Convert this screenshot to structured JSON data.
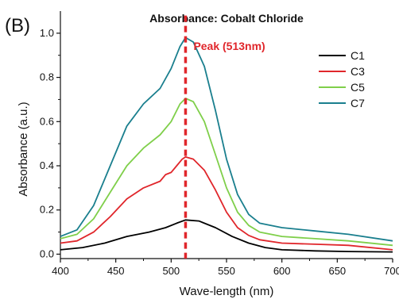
{
  "panel_label": "(B)",
  "chart_data": {
    "type": "line",
    "title": "Absorbance: Cobalt Chloride",
    "xlabel": "Wave-length (nm)",
    "ylabel": "Absorbance (a.u.)",
    "xlim": [
      400,
      700
    ],
    "ylim": [
      -0.02,
      1.1
    ],
    "x_ticks": [
      400,
      450,
      500,
      550,
      600,
      650,
      700
    ],
    "y_ticks": [
      0.0,
      0.2,
      0.4,
      0.6,
      0.8,
      1.0
    ],
    "x_tick_labels": [
      "400",
      "450",
      "500",
      "550",
      "600",
      "650",
      "700"
    ],
    "y_tick_labels": [
      "0.0",
      "0.2",
      "0.4",
      "0.6",
      "0.8",
      "1.0"
    ],
    "grid": false,
    "legend_position": "top-right",
    "peak_annotation": {
      "x": 513,
      "label": "Peak (513nm)",
      "color": "#e0262b"
    },
    "series": [
      {
        "name": "C1",
        "color": "#000000",
        "points": [
          [
            400,
            0.02
          ],
          [
            420,
            0.03
          ],
          [
            440,
            0.05
          ],
          [
            460,
            0.08
          ],
          [
            480,
            0.1
          ],
          [
            495,
            0.12
          ],
          [
            505,
            0.14
          ],
          [
            513,
            0.155
          ],
          [
            525,
            0.15
          ],
          [
            540,
            0.12
          ],
          [
            555,
            0.08
          ],
          [
            570,
            0.05
          ],
          [
            585,
            0.03
          ],
          [
            600,
            0.02
          ],
          [
            630,
            0.015
          ],
          [
            660,
            0.012
          ],
          [
            700,
            0.01
          ]
        ]
      },
      {
        "name": "C3",
        "color": "#e0262b",
        "points": [
          [
            400,
            0.05
          ],
          [
            415,
            0.06
          ],
          [
            430,
            0.1
          ],
          [
            445,
            0.17
          ],
          [
            460,
            0.25
          ],
          [
            475,
            0.3
          ],
          [
            490,
            0.33
          ],
          [
            495,
            0.36
          ],
          [
            500,
            0.37
          ],
          [
            505,
            0.4
          ],
          [
            510,
            0.43
          ],
          [
            513,
            0.44
          ],
          [
            520,
            0.43
          ],
          [
            530,
            0.38
          ],
          [
            540,
            0.29
          ],
          [
            550,
            0.19
          ],
          [
            560,
            0.12
          ],
          [
            570,
            0.085
          ],
          [
            580,
            0.065
          ],
          [
            600,
            0.05
          ],
          [
            630,
            0.045
          ],
          [
            660,
            0.04
          ],
          [
            700,
            0.02
          ]
        ]
      },
      {
        "name": "C5",
        "color": "#7fcf4a",
        "points": [
          [
            400,
            0.07
          ],
          [
            415,
            0.09
          ],
          [
            430,
            0.16
          ],
          [
            445,
            0.28
          ],
          [
            460,
            0.4
          ],
          [
            475,
            0.48
          ],
          [
            490,
            0.54
          ],
          [
            500,
            0.6
          ],
          [
            508,
            0.68
          ],
          [
            513,
            0.705
          ],
          [
            520,
            0.69
          ],
          [
            530,
            0.6
          ],
          [
            540,
            0.45
          ],
          [
            550,
            0.3
          ],
          [
            560,
            0.19
          ],
          [
            570,
            0.13
          ],
          [
            580,
            0.1
          ],
          [
            600,
            0.08
          ],
          [
            630,
            0.07
          ],
          [
            660,
            0.06
          ],
          [
            700,
            0.04
          ]
        ]
      },
      {
        "name": "C7",
        "color": "#1a7f8e",
        "points": [
          [
            400,
            0.08
          ],
          [
            415,
            0.11
          ],
          [
            430,
            0.22
          ],
          [
            445,
            0.4
          ],
          [
            460,
            0.58
          ],
          [
            475,
            0.68
          ],
          [
            490,
            0.75
          ],
          [
            500,
            0.84
          ],
          [
            508,
            0.94
          ],
          [
            513,
            0.98
          ],
          [
            520,
            0.96
          ],
          [
            530,
            0.85
          ],
          [
            540,
            0.65
          ],
          [
            550,
            0.43
          ],
          [
            560,
            0.27
          ],
          [
            570,
            0.18
          ],
          [
            580,
            0.14
          ],
          [
            600,
            0.12
          ],
          [
            630,
            0.105
          ],
          [
            660,
            0.09
          ],
          [
            700,
            0.06
          ]
        ]
      }
    ]
  }
}
